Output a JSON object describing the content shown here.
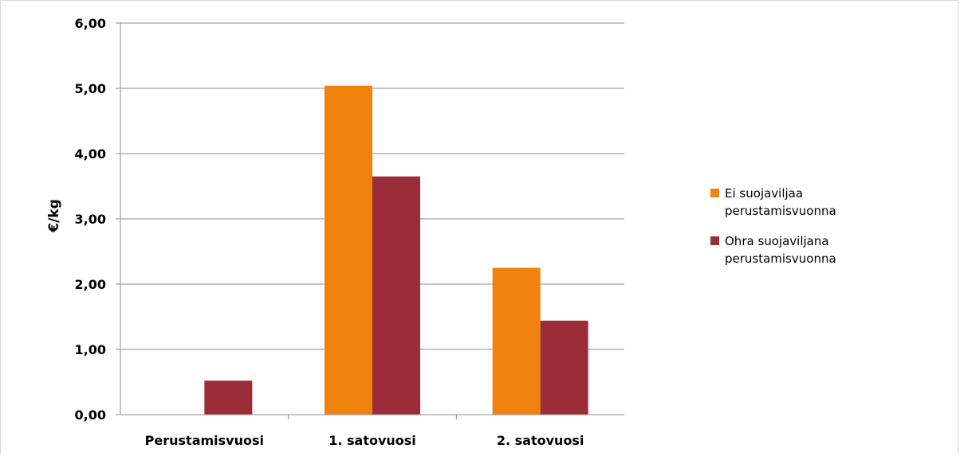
{
  "chart_data": {
    "type": "bar",
    "title": "",
    "xlabel": "",
    "ylabel": "€/kg",
    "categories": [
      "Perustamisvuosi",
      "1. satovuosi",
      "2. satovuosi"
    ],
    "series": [
      {
        "name": "Ei suojaviljaa perustamisvuonna",
        "name_lines": [
          "Ei suojaviljaa",
          "perustamisvuonna"
        ],
        "color": "#f0830e",
        "values": [
          0.0,
          5.04,
          2.25
        ]
      },
      {
        "name": "Ohra suojaviljana perustamisvuonna",
        "name_lines": [
          "Ohra suojaviljana",
          "perustamisvuonna"
        ],
        "color": "#9b2c3a",
        "values": [
          0.52,
          3.65,
          1.44
        ]
      }
    ],
    "ylim": [
      0,
      6
    ],
    "yticks": [
      0,
      1,
      2,
      3,
      4,
      5,
      6
    ],
    "ytick_labels": [
      "0,00",
      "1,00",
      "2,00",
      "3,00",
      "4,00",
      "5,00",
      "6,00"
    ],
    "grid": true,
    "legend_position": "right"
  }
}
